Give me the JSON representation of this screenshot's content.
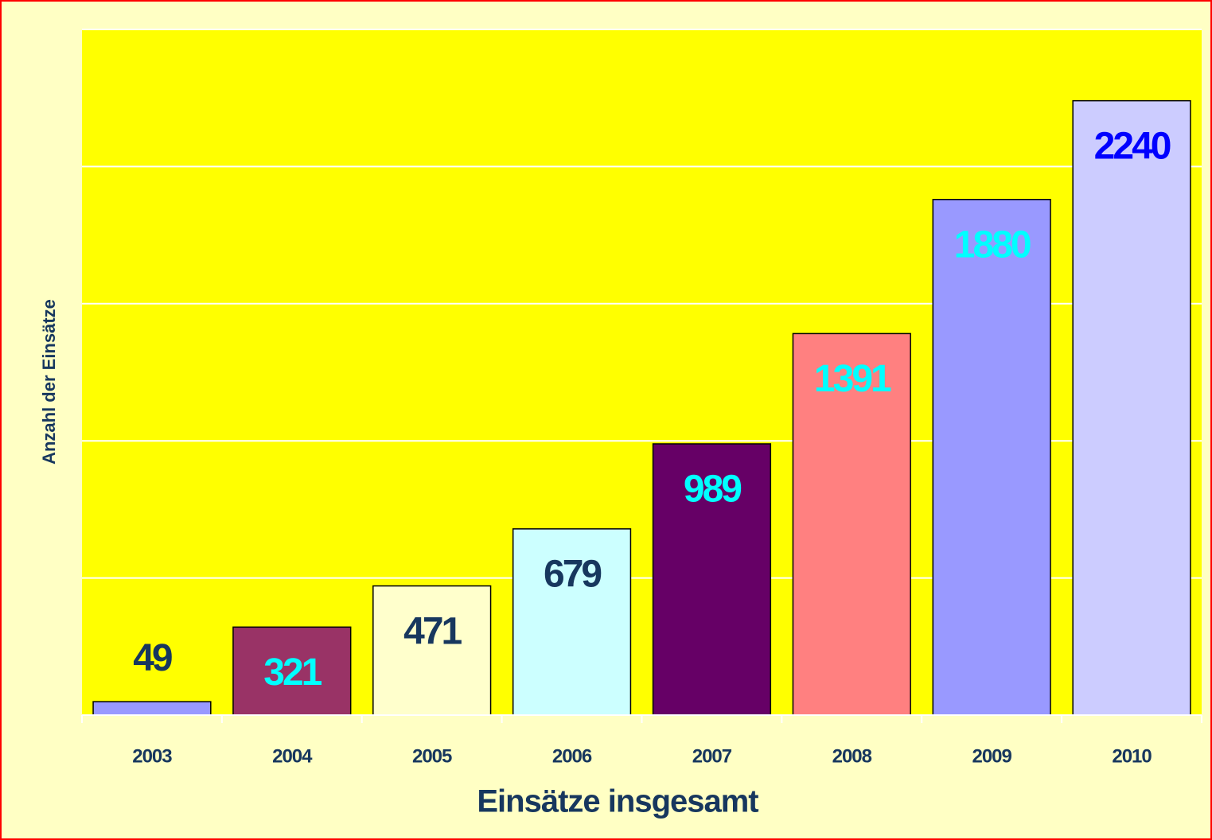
{
  "chart_data": {
    "type": "bar",
    "title": "Einsätze insgesamt",
    "y_label": "Anzahl der Einsätze",
    "categories": [
      "2003",
      "2004",
      "2005",
      "2006",
      "2007",
      "2008",
      "2009",
      "2010"
    ],
    "values": [
      49,
      321,
      471,
      679,
      989,
      1391,
      1880,
      2240
    ],
    "colors": [
      "#9999ff",
      "#993366",
      "#ffffcc",
      "#ccffff",
      "#660066",
      "#ff8080",
      "#9999ff",
      "#ccccff"
    ],
    "label_colors": [
      "#17375e",
      "#00ffff",
      "#17375e",
      "#17375e",
      "#00ffff",
      "#00ffff",
      "#00ffff",
      "#0000ff"
    ],
    "ylim": [
      0,
      2500
    ],
    "yticks": [
      0,
      500,
      1000,
      1500,
      2000,
      2500
    ],
    "grid": true
  }
}
